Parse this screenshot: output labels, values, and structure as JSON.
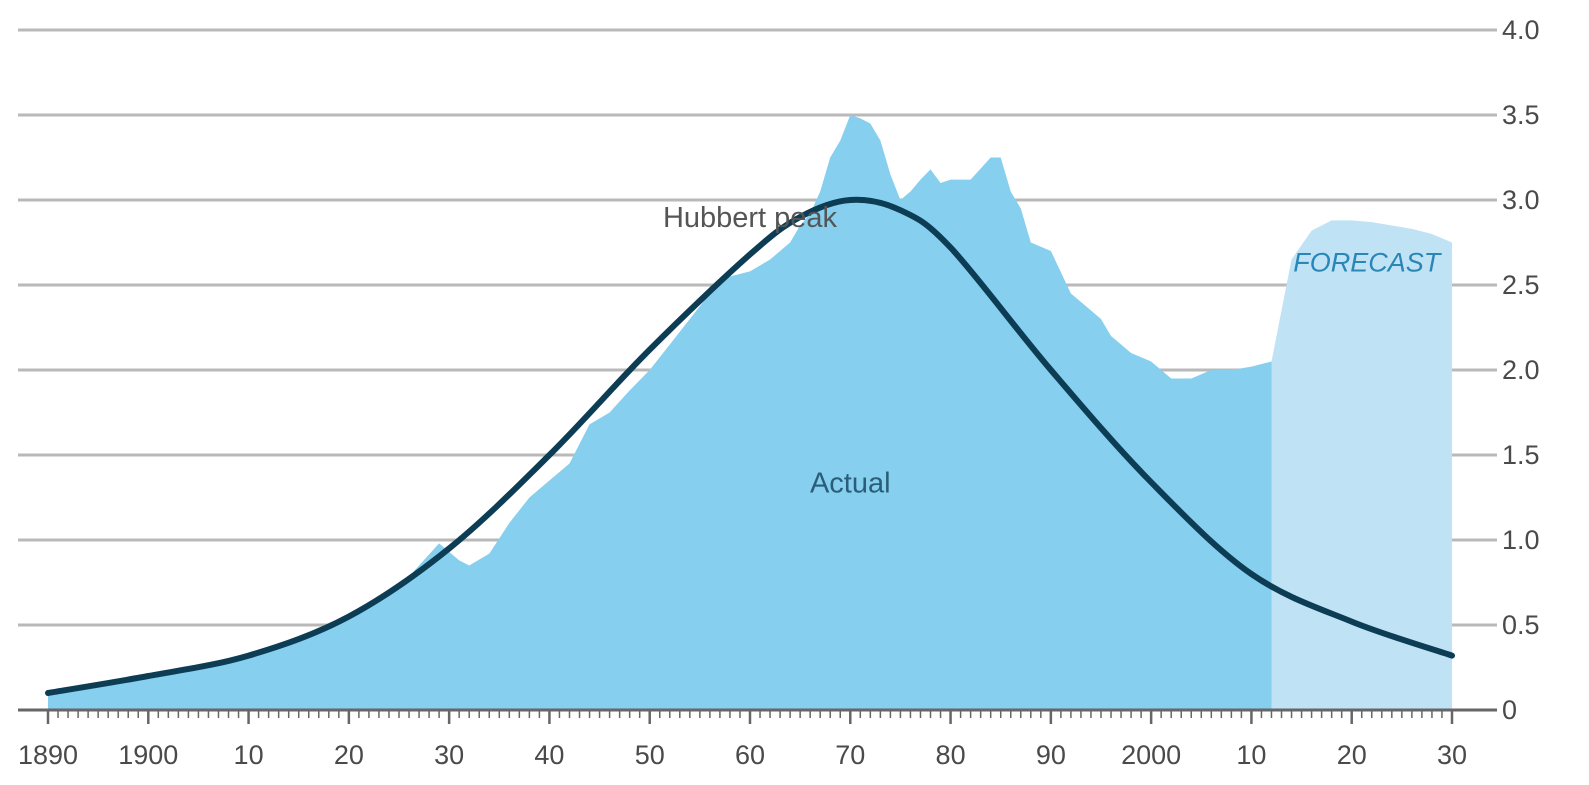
{
  "chart_data": {
    "type": "area",
    "title": "",
    "xlabel": "",
    "ylabel": "",
    "xlim": [
      1890,
      2030
    ],
    "ylim": [
      0,
      4.0
    ],
    "x_ticks": [
      1890,
      1900,
      1910,
      1920,
      1930,
      1940,
      1950,
      1960,
      1970,
      1980,
      1990,
      2000,
      2010,
      2020,
      2030
    ],
    "x_tick_labels": [
      "1890",
      "1900",
      "10",
      "20",
      "30",
      "40",
      "50",
      "60",
      "70",
      "80",
      "90",
      "2000",
      "10",
      "20",
      "30"
    ],
    "y_ticks": [
      0,
      0.5,
      1.0,
      1.5,
      2.0,
      2.5,
      3.0,
      3.5,
      4.0
    ],
    "y_tick_labels": [
      "0",
      "0.5",
      "1.0",
      "1.5",
      "2.0",
      "2.5",
      "3.0",
      "3.5",
      "4.0"
    ],
    "y_axis_side": "right",
    "grid": "horizontal",
    "legend": "none",
    "series": [
      {
        "name": "Actual",
        "kind": "area",
        "color": "#86cfee",
        "points": [
          [
            1890,
            0.1
          ],
          [
            1900,
            0.2
          ],
          [
            1910,
            0.32
          ],
          [
            1915,
            0.4
          ],
          [
            1920,
            0.55
          ],
          [
            1925,
            0.72
          ],
          [
            1929,
            0.98
          ],
          [
            1931,
            0.88
          ],
          [
            1932,
            0.85
          ],
          [
            1934,
            0.92
          ],
          [
            1936,
            1.1
          ],
          [
            1938,
            1.25
          ],
          [
            1940,
            1.35
          ],
          [
            1942,
            1.45
          ],
          [
            1944,
            1.68
          ],
          [
            1946,
            1.75
          ],
          [
            1948,
            1.88
          ],
          [
            1950,
            2.0
          ],
          [
            1952,
            2.15
          ],
          [
            1954,
            2.3
          ],
          [
            1956,
            2.45
          ],
          [
            1958,
            2.55
          ],
          [
            1960,
            2.58
          ],
          [
            1962,
            2.65
          ],
          [
            1964,
            2.75
          ],
          [
            1965,
            2.85
          ],
          [
            1966,
            2.92
          ],
          [
            1967,
            3.05
          ],
          [
            1968,
            3.25
          ],
          [
            1969,
            3.35
          ],
          [
            1970,
            3.5
          ],
          [
            1971,
            3.48
          ],
          [
            1972,
            3.45
          ],
          [
            1973,
            3.35
          ],
          [
            1974,
            3.15
          ],
          [
            1975,
            3.0
          ],
          [
            1976,
            3.05
          ],
          [
            1977,
            3.12
          ],
          [
            1978,
            3.18
          ],
          [
            1979,
            3.1
          ],
          [
            1980,
            3.12
          ],
          [
            1982,
            3.12
          ],
          [
            1984,
            3.25
          ],
          [
            1985,
            3.25
          ],
          [
            1986,
            3.05
          ],
          [
            1987,
            2.95
          ],
          [
            1988,
            2.75
          ],
          [
            1990,
            2.7
          ],
          [
            1992,
            2.45
          ],
          [
            1994,
            2.35
          ],
          [
            1995,
            2.3
          ],
          [
            1996,
            2.2
          ],
          [
            1998,
            2.1
          ],
          [
            2000,
            2.05
          ],
          [
            2002,
            1.95
          ],
          [
            2004,
            1.95
          ],
          [
            2006,
            2.0
          ],
          [
            2008,
            2.0
          ],
          [
            2010,
            2.02
          ],
          [
            2012,
            2.05
          ]
        ]
      },
      {
        "name": "FORECAST",
        "kind": "area",
        "color": "#bfe3f5",
        "points": [
          [
            2012,
            2.05
          ],
          [
            2013,
            2.35
          ],
          [
            2014,
            2.65
          ],
          [
            2016,
            2.82
          ],
          [
            2018,
            2.88
          ],
          [
            2020,
            2.88
          ],
          [
            2022,
            2.87
          ],
          [
            2024,
            2.85
          ],
          [
            2026,
            2.83
          ],
          [
            2028,
            2.8
          ],
          [
            2030,
            2.75
          ]
        ]
      },
      {
        "name": "Hubbert peak",
        "kind": "line",
        "color": "#0d3d54",
        "peak_x": 1970,
        "peak_y": 3.0,
        "points": [
          [
            1890,
            0.1
          ],
          [
            1900,
            0.2
          ],
          [
            1910,
            0.32
          ],
          [
            1920,
            0.55
          ],
          [
            1930,
            0.95
          ],
          [
            1940,
            1.5
          ],
          [
            1950,
            2.12
          ],
          [
            1960,
            2.68
          ],
          [
            1965,
            2.9
          ],
          [
            1970,
            3.0
          ],
          [
            1975,
            2.94
          ],
          [
            1980,
            2.72
          ],
          [
            1990,
            2.0
          ],
          [
            2000,
            1.34
          ],
          [
            2010,
            0.8
          ],
          [
            2020,
            0.52
          ],
          [
            2030,
            0.32
          ]
        ]
      }
    ],
    "annotations": [
      {
        "text": "Hubbert peak",
        "x": 1960,
        "y": 2.84,
        "color": "#555555"
      },
      {
        "text": "Actual",
        "x": 1970,
        "y": 1.28,
        "color": "#2a5d7a"
      },
      {
        "text": "FORECAST",
        "x": 2021.5,
        "y": 2.58,
        "color": "#2a86b7"
      }
    ]
  }
}
